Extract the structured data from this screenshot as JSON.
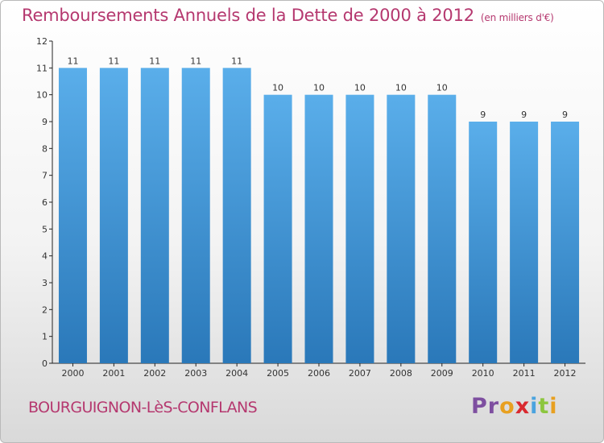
{
  "header": {
    "title": "Remboursements Annuels de la Dette de 2000 à 2012",
    "unit": "(en milliers d'€)"
  },
  "footer": {
    "city": "BOURGUIGNON-LèS-CONFLANS",
    "logo_letters": [
      "P",
      "r",
      "o",
      "x",
      "i",
      "t",
      "i"
    ]
  },
  "colors": {
    "title": "#b5386f",
    "bar_top": "#5aaeea",
    "bar_bottom": "#2a78b9",
    "logo": [
      "#7e4fa0",
      "#7e4fa0",
      "#e8a020",
      "#d9292f",
      "#4aa3df",
      "#8cc63f",
      "#e8a020"
    ]
  },
  "chart_data": {
    "type": "bar",
    "categories": [
      "2000",
      "2001",
      "2002",
      "2003",
      "2004",
      "2005",
      "2006",
      "2007",
      "2008",
      "2009",
      "2010",
      "2011",
      "2012"
    ],
    "values": [
      11,
      11,
      11,
      11,
      11,
      10,
      10,
      10,
      10,
      10,
      9,
      9,
      9
    ],
    "ylim": [
      0,
      12
    ],
    "yticks": [
      0,
      1,
      2,
      3,
      4,
      5,
      6,
      7,
      8,
      9,
      10,
      11,
      12
    ],
    "grid": false,
    "data_labels": true
  }
}
